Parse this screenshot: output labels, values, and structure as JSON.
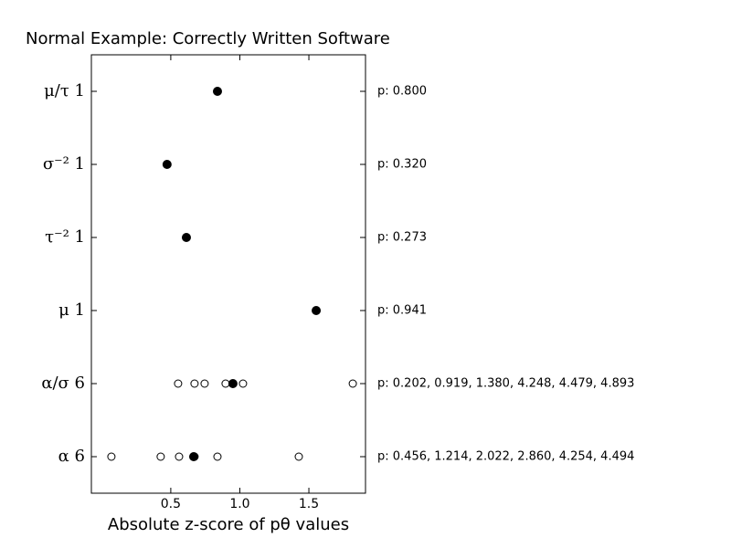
{
  "chart_data": {
    "type": "dotplot",
    "title": "Normal Example: Correctly Written Software",
    "xlabel": "Absolute z-score of pθ values",
    "categories": [
      "μ/τ 1",
      "σ⁻² 1",
      "τ⁻² 1",
      "μ 1",
      "α/σ 6",
      "α 6"
    ],
    "points": [
      [
        0.838
      ],
      [
        0.473
      ],
      [
        0.613
      ],
      [
        1.553
      ],
      [
        0.553,
        0.672,
        0.745,
        0.897,
        1.023,
        1.818
      ],
      [
        0.07,
        0.427,
        0.56,
        0.672,
        0.838,
        1.427
      ]
    ],
    "means": [
      0.838,
      0.473,
      0.613,
      1.553,
      0.95,
      0.666
    ],
    "annotations": [
      "p: 0.800",
      "p: 0.320",
      "p: 0.273",
      "p: 0.941",
      "p: 0.202, 0.919, 1.380, 4.248, 4.479, 4.893",
      "p: 0.456, 1.214, 2.022, 2.860, 4.254, 4.494"
    ],
    "xlim": [
      -0.075,
      1.91
    ],
    "xticks": [
      0.5,
      {
        "value": 1,
        "label": "1.0"
      },
      1.5
    ],
    "color": "#000000"
  }
}
